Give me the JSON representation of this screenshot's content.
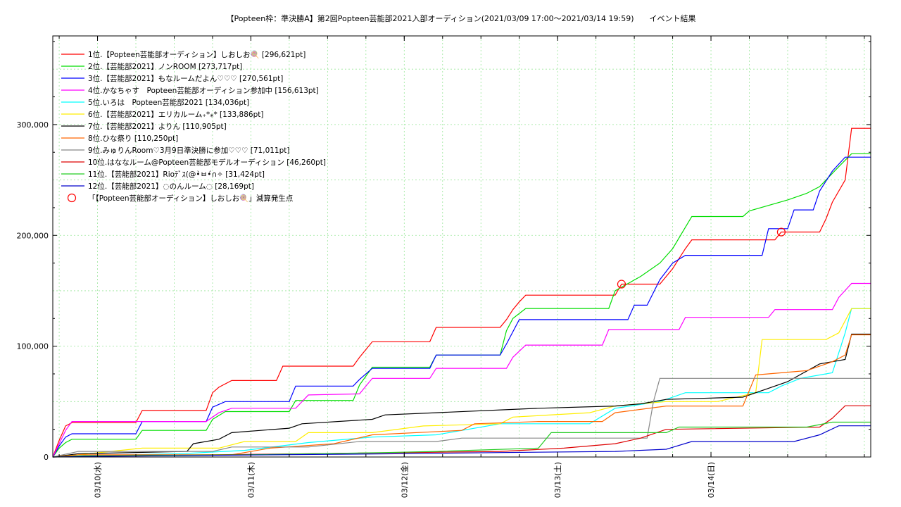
{
  "chart_data": {
    "type": "line",
    "title": "【Popteen枠：準決勝A】第2回Popteen芸能部2021入部オーディション(2021/03/09 17:00～2021/03/14 19:59)　　イベント結果",
    "xlabel": "",
    "ylabel": "",
    "x_range": [
      "2021/03/09 17:00",
      "2021/03/14 19:59"
    ],
    "ylim": [
      0,
      380000
    ],
    "y_ticks": [
      0,
      100000,
      200000,
      300000
    ],
    "y_tick_labels": [
      "0",
      "100,000",
      "200,000",
      "300,000"
    ],
    "x_ticks": [
      {
        "label": "03/10(水)",
        "hour": 7
      },
      {
        "label": "03/11(木)",
        "hour": 31
      },
      {
        "label": "03/12(金)",
        "hour": 55
      },
      {
        "label": "03/13(土)",
        "hour": 79
      },
      {
        "label": "03/14(日)",
        "hour": 103
      }
    ],
    "grid": true,
    "legend_position": "top-left",
    "series": [
      {
        "name": "1位.【Popteen芸能部オーディション】しおしお🍭 [296,621pt]",
        "color": "#ff0000",
        "points": [
          [
            0,
            0
          ],
          [
            1,
            15000
          ],
          [
            2,
            28000
          ],
          [
            3,
            31000
          ],
          [
            13,
            31000
          ],
          [
            14,
            42000
          ],
          [
            24,
            42000
          ],
          [
            25,
            58000
          ],
          [
            26,
            63000
          ],
          [
            28,
            69000
          ],
          [
            35,
            69000
          ],
          [
            36,
            82000
          ],
          [
            47,
            82000
          ],
          [
            48,
            90000
          ],
          [
            50,
            104000
          ],
          [
            59,
            104000
          ],
          [
            60,
            117000
          ],
          [
            70,
            117000
          ],
          [
            71,
            124000
          ],
          [
            72,
            133000
          ],
          [
            73,
            140000
          ],
          [
            74,
            146000
          ],
          [
            88,
            146000
          ],
          [
            89,
            156000
          ],
          [
            95,
            156000
          ],
          [
            97,
            170000
          ],
          [
            99,
            188000
          ],
          [
            100,
            196000
          ],
          [
            113,
            196000
          ],
          [
            114,
            203000
          ],
          [
            120,
            203000
          ],
          [
            121,
            215000
          ],
          [
            122,
            230000
          ],
          [
            124,
            250000
          ],
          [
            125,
            296621
          ],
          [
            128,
            296621
          ]
        ]
      },
      {
        "name": "2位.【芸能部2021】ノンROOM [273,717pt]",
        "color": "#00dd00",
        "points": [
          [
            0,
            0
          ],
          [
            1,
            8000
          ],
          [
            2,
            13000
          ],
          [
            3,
            16000
          ],
          [
            13,
            16000
          ],
          [
            14,
            24000
          ],
          [
            24,
            24000
          ],
          [
            25,
            34000
          ],
          [
            27,
            41000
          ],
          [
            37,
            41000
          ],
          [
            38,
            51000
          ],
          [
            47,
            51000
          ],
          [
            48,
            65000
          ],
          [
            50,
            81000
          ],
          [
            59,
            81000
          ],
          [
            60,
            92000
          ],
          [
            70,
            92000
          ],
          [
            71,
            114000
          ],
          [
            72,
            125000
          ],
          [
            74,
            134000
          ],
          [
            87,
            134000
          ],
          [
            88,
            150000
          ],
          [
            92,
            163000
          ],
          [
            95,
            175000
          ],
          [
            97,
            188000
          ],
          [
            100,
            217000
          ],
          [
            108,
            217000
          ],
          [
            109,
            222000
          ],
          [
            115,
            232000
          ],
          [
            118,
            238000
          ],
          [
            120,
            244000
          ],
          [
            123,
            262000
          ],
          [
            125,
            273717
          ],
          [
            128,
            273717
          ]
        ]
      },
      {
        "name": "3位.【芸能部2021】もなルームだよん♡♡♡ [270,561pt]",
        "color": "#0000ff",
        "points": [
          [
            0,
            0
          ],
          [
            1,
            10000
          ],
          [
            2,
            18000
          ],
          [
            3,
            21000
          ],
          [
            13,
            21000
          ],
          [
            14,
            32000
          ],
          [
            24,
            32000
          ],
          [
            25,
            45000
          ],
          [
            27,
            50000
          ],
          [
            37,
            50000
          ],
          [
            38,
            64000
          ],
          [
            47,
            64000
          ],
          [
            48,
            70000
          ],
          [
            50,
            80000
          ],
          [
            59,
            80000
          ],
          [
            60,
            92000
          ],
          [
            70,
            92000
          ],
          [
            71,
            102000
          ],
          [
            73,
            124000
          ],
          [
            90,
            124000
          ],
          [
            91,
            137000
          ],
          [
            93,
            137000
          ],
          [
            95,
            160000
          ],
          [
            97,
            175000
          ],
          [
            99,
            182000
          ],
          [
            111,
            182000
          ],
          [
            112,
            206000
          ],
          [
            115,
            206000
          ],
          [
            116,
            223000
          ],
          [
            119,
            223000
          ],
          [
            120,
            240000
          ],
          [
            122,
            258000
          ],
          [
            124,
            270561
          ],
          [
            128,
            270561
          ]
        ]
      },
      {
        "name": "4位.かなちゃす　Popteen芸能部オーディション参加中 [156,613pt]",
        "color": "#ff00ff",
        "points": [
          [
            0,
            0
          ],
          [
            2,
            24000
          ],
          [
            3,
            32000
          ],
          [
            24,
            32000
          ],
          [
            26,
            40000
          ],
          [
            28,
            44000
          ],
          [
            38,
            44000
          ],
          [
            40,
            56000
          ],
          [
            48,
            57000
          ],
          [
            50,
            71000
          ],
          [
            59,
            71000
          ],
          [
            60,
            80000
          ],
          [
            71,
            80000
          ],
          [
            72,
            90000
          ],
          [
            74,
            101000
          ],
          [
            86,
            101000
          ],
          [
            87,
            115000
          ],
          [
            98,
            115000
          ],
          [
            99,
            126000
          ],
          [
            112,
            126000
          ],
          [
            113,
            133000
          ],
          [
            122,
            133000
          ],
          [
            123,
            144000
          ],
          [
            125,
            156613
          ],
          [
            128,
            156613
          ]
        ]
      },
      {
        "name": "5位.いろは　Popteen芸能部2021 [134,036pt]",
        "color": "#00ffff",
        "points": [
          [
            0,
            0
          ],
          [
            4,
            1000
          ],
          [
            20,
            3000
          ],
          [
            30,
            6000
          ],
          [
            40,
            13000
          ],
          [
            50,
            18000
          ],
          [
            60,
            20000
          ],
          [
            70,
            30000
          ],
          [
            84,
            30000
          ],
          [
            88,
            44000
          ],
          [
            95,
            50000
          ],
          [
            99,
            58000
          ],
          [
            112,
            58000
          ],
          [
            114,
            64000
          ],
          [
            117,
            71000
          ],
          [
            122,
            76000
          ],
          [
            124,
            112000
          ],
          [
            125,
            134036
          ],
          [
            128,
            134036
          ]
        ]
      },
      {
        "name": "6位.【芸能部2021】エリカルーム₊*⁎* [133,886pt]",
        "color": "#ffee00",
        "points": [
          [
            0,
            0
          ],
          [
            4,
            2000
          ],
          [
            14,
            8000
          ],
          [
            26,
            8000
          ],
          [
            30,
            14000
          ],
          [
            38,
            14000
          ],
          [
            40,
            22000
          ],
          [
            50,
            22000
          ],
          [
            58,
            28000
          ],
          [
            70,
            30000
          ],
          [
            72,
            36000
          ],
          [
            84,
            40000
          ],
          [
            88,
            46000
          ],
          [
            96,
            50000
          ],
          [
            104,
            50000
          ],
          [
            110,
            58000
          ],
          [
            111,
            106000
          ],
          [
            121,
            106000
          ],
          [
            123,
            112000
          ],
          [
            125,
            133886
          ],
          [
            128,
            133886
          ]
        ]
      },
      {
        "name": "7位.【芸能部2021】よりん [110,905pt]",
        "color": "#000000",
        "points": [
          [
            0,
            0
          ],
          [
            4,
            3000
          ],
          [
            21,
            5000
          ],
          [
            22,
            12000
          ],
          [
            26,
            16000
          ],
          [
            28,
            22000
          ],
          [
            37,
            26000
          ],
          [
            39,
            30000
          ],
          [
            50,
            34000
          ],
          [
            52,
            38000
          ],
          [
            60,
            40000
          ],
          [
            76,
            44000
          ],
          [
            88,
            46000
          ],
          [
            92,
            48000
          ],
          [
            96,
            52000
          ],
          [
            108,
            54000
          ],
          [
            112,
            62000
          ],
          [
            115,
            68000
          ],
          [
            120,
            84000
          ],
          [
            124,
            88000
          ],
          [
            125,
            110905
          ],
          [
            128,
            110905
          ]
        ]
      },
      {
        "name": "8位.ひな祭り [110,250pt]",
        "color": "#ff6600",
        "points": [
          [
            0,
            0
          ],
          [
            4,
            2000
          ],
          [
            28,
            2000
          ],
          [
            34,
            8000
          ],
          [
            44,
            12000
          ],
          [
            50,
            20000
          ],
          [
            64,
            24000
          ],
          [
            66,
            30000
          ],
          [
            76,
            32000
          ],
          [
            86,
            32000
          ],
          [
            88,
            40000
          ],
          [
            96,
            46000
          ],
          [
            108,
            46000
          ],
          [
            110,
            74000
          ],
          [
            118,
            78000
          ],
          [
            122,
            86000
          ],
          [
            124,
            92000
          ],
          [
            125,
            110250
          ],
          [
            128,
            110250
          ]
        ]
      },
      {
        "name": "9位.みゅりんRoom♡3月9日準決勝に参加♡♡♡ [71,011pt]",
        "color": "#888888",
        "points": [
          [
            0,
            0
          ],
          [
            4,
            5000
          ],
          [
            25,
            5000
          ],
          [
            28,
            9000
          ],
          [
            40,
            9000
          ],
          [
            48,
            14000
          ],
          [
            60,
            14000
          ],
          [
            64,
            17000
          ],
          [
            93,
            17000
          ],
          [
            94,
            50000
          ],
          [
            95,
            71011
          ],
          [
            128,
            71011
          ]
        ]
      },
      {
        "name": "10位.はななルーム@Popteen芸能部モデルオーディション [46,260pt]",
        "color": "#dd0000",
        "points": [
          [
            0,
            0
          ],
          [
            10,
            1000
          ],
          [
            40,
            3000
          ],
          [
            70,
            5000
          ],
          [
            80,
            8000
          ],
          [
            88,
            12000
          ],
          [
            92,
            17000
          ],
          [
            96,
            25000
          ],
          [
            120,
            27000
          ],
          [
            122,
            35000
          ],
          [
            124,
            46260
          ],
          [
            128,
            46260
          ]
        ]
      },
      {
        "name": "11位.【芸能部2021】Rioﾃﾞｽ(@•̀ㅂ•́∩✧ [31,424pt]",
        "color": "#22cc22",
        "points": [
          [
            0,
            0
          ],
          [
            5,
            1000
          ],
          [
            30,
            2000
          ],
          [
            52,
            4000
          ],
          [
            60,
            5000
          ],
          [
            76,
            8000
          ],
          [
            78,
            22000
          ],
          [
            96,
            22000
          ],
          [
            98,
            27000
          ],
          [
            118,
            27000
          ],
          [
            122,
            31424
          ],
          [
            128,
            31424
          ]
        ]
      },
      {
        "name": "12位.【芸能部2021】◌のんルーム◌ [28,169pt]",
        "color": "#0000cc",
        "points": [
          [
            0,
            0
          ],
          [
            5,
            500
          ],
          [
            55,
            3000
          ],
          [
            70,
            4000
          ],
          [
            88,
            5000
          ],
          [
            96,
            7000
          ],
          [
            100,
            14000
          ],
          [
            116,
            14000
          ],
          [
            120,
            20000
          ],
          [
            123,
            28169
          ],
          [
            128,
            28169
          ]
        ]
      }
    ],
    "annotation": {
      "label": "「【Popteen芸能部オーディション】しおしお🍭」減算発生点",
      "color": "#ff0000",
      "points": [
        [
          89,
          156000
        ],
        [
          114,
          203000
        ]
      ]
    }
  }
}
